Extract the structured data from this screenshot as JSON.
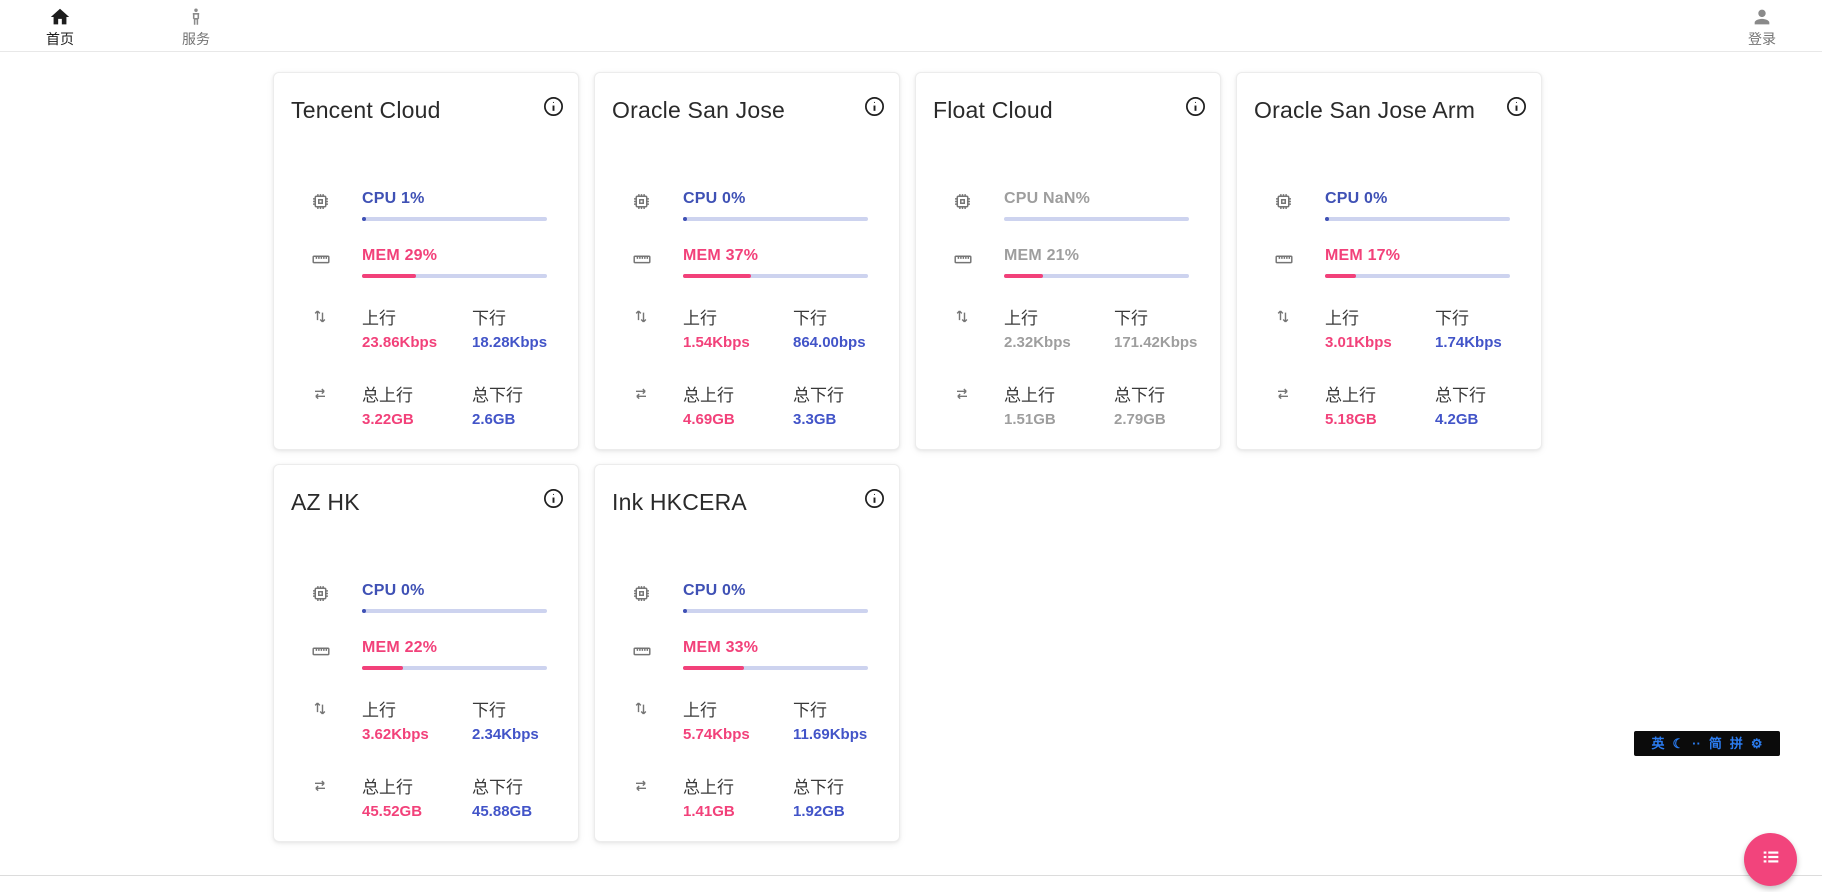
{
  "nav": {
    "items": [
      {
        "label": "首页",
        "icon": "home-icon",
        "active": true
      },
      {
        "label": "服务",
        "icon": "person-standing-icon",
        "active": false
      }
    ],
    "login": {
      "label": "登录",
      "icon": "person-icon"
    }
  },
  "labels": {
    "upload": "上行",
    "download": "下行",
    "total_upload": "总上行",
    "total_download": "总下行"
  },
  "colors": {
    "accent_blue_label": "#3F51B5",
    "accent_blue_value": "#4254C8",
    "accent_pink": "#F2417A",
    "bar_track": "#CDD3EF",
    "muted_gray": "#9E9E9E",
    "fab_pink": "#F2447C",
    "ime_blue": "#2B7CF0"
  },
  "servers": [
    {
      "name": "Tencent Cloud",
      "cpu_label": "CPU 1%",
      "cpu_pct": 1,
      "mem_label": "MEM 29%",
      "mem_pct": 29,
      "up": "23.86Kbps",
      "down": "18.28Kbps",
      "total_up": "3.22GB",
      "total_down": "2.6GB",
      "muted": false
    },
    {
      "name": "Oracle San Jose",
      "cpu_label": "CPU 0%",
      "cpu_pct": 0,
      "mem_label": "MEM 37%",
      "mem_pct": 37,
      "up": "1.54Kbps",
      "down": "864.00bps",
      "total_up": "4.69GB",
      "total_down": "3.3GB",
      "muted": false
    },
    {
      "name": "Float Cloud",
      "cpu_label": "CPU NaN%",
      "cpu_pct": null,
      "mem_label": "MEM 21%",
      "mem_pct": 21,
      "up": "2.32Kbps",
      "down": "171.42Kbps",
      "total_up": "1.51GB",
      "total_down": "2.79GB",
      "muted": true
    },
    {
      "name": "Oracle San Jose Arm",
      "cpu_label": "CPU 0%",
      "cpu_pct": 0,
      "mem_label": "MEM 17%",
      "mem_pct": 17,
      "up": "3.01Kbps",
      "down": "1.74Kbps",
      "total_up": "5.18GB",
      "total_down": "4.2GB",
      "muted": false
    },
    {
      "name": "AZ HK",
      "cpu_label": "CPU 0%",
      "cpu_pct": 0,
      "mem_label": "MEM 22%",
      "mem_pct": 22,
      "up": "3.62Kbps",
      "down": "2.34Kbps",
      "total_up": "45.52GB",
      "total_down": "45.88GB",
      "muted": false
    },
    {
      "name": "Ink HKCERA",
      "cpu_label": "CPU 0%",
      "cpu_pct": 0,
      "mem_label": "MEM 33%",
      "mem_pct": 33,
      "up": "5.74Kbps",
      "down": "11.69Kbps",
      "total_up": "1.41GB",
      "total_down": "1.92GB",
      "muted": false
    }
  ],
  "ime_bar": {
    "lang": "英",
    "moon": "☾",
    "dots": "··",
    "simplified": "简",
    "pinyin": "拼",
    "gear": "⚙"
  }
}
